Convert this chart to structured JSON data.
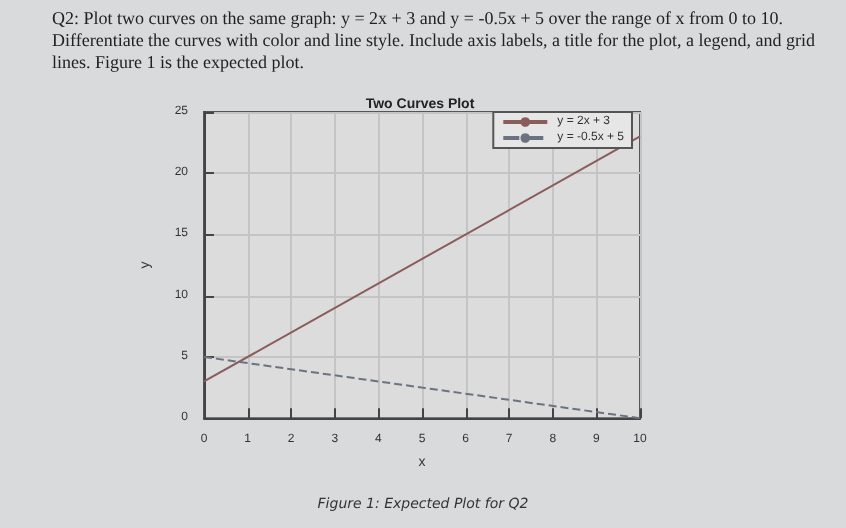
{
  "chart_data": {
    "type": "line",
    "title": "Two Curves Plot",
    "subtitle": "Q2: Plot two curves on the same graph: y = 2x + 3 and y = -0.5x + 5 over the range of x from 0 to 10. Differentiate the curves with color and line style. Include axis labels, a title for the plot, a legend, and grid lines. Figure 1 is the expected plot.",
    "xlabel": "x",
    "ylabel": "y",
    "annotations": [
      "Figure 1: Expected Plot for Q2"
    ],
    "x": [
      0,
      10
    ],
    "series": [
      {
        "name": "y = 2x + 3",
        "color": "#8a5c5c",
        "values": [
          3,
          23
        ],
        "line_style": "solid"
      },
      {
        "name": "y = -0.5x + 5",
        "color": "#6b7280",
        "values": [
          5,
          0
        ],
        "line_style": "dashed"
      }
    ],
    "xlim": [
      0,
      10
    ],
    "ylim": [
      0,
      25
    ],
    "xticks": [
      0,
      1,
      2,
      3,
      4,
      5,
      6,
      7,
      8,
      9,
      10
    ],
    "yticks": [
      0,
      5,
      10,
      15,
      20,
      25
    ],
    "grid": true,
    "legend": "top right",
    "marker": "none"
  }
}
